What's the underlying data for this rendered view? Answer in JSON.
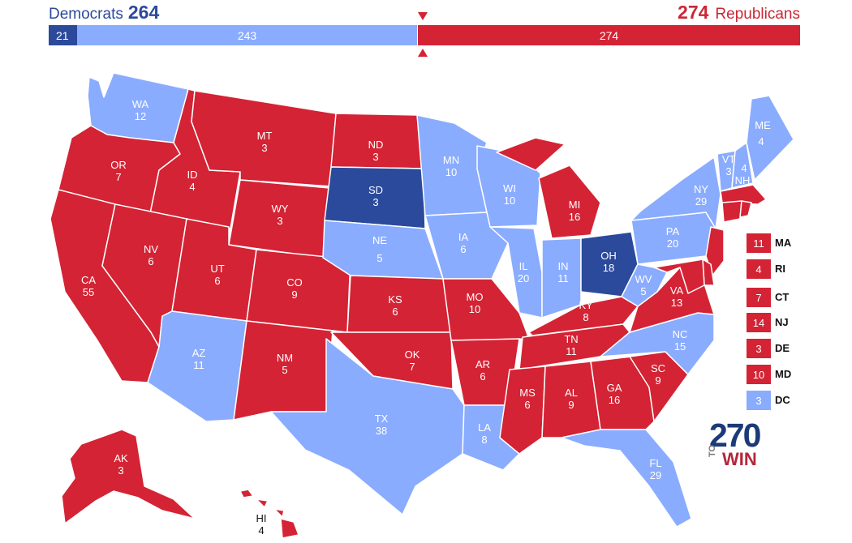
{
  "header": {
    "dem_label": "Democrats",
    "dem_total": "264",
    "rep_label": "Republicans",
    "rep_total": "274",
    "bar_dem_safe": "21",
    "bar_dem_lean": "243",
    "bar_rep": "274"
  },
  "colors": {
    "dem_safe": "#2b4a9b",
    "dem_lean": "#8aacff",
    "rep": "#d42334"
  },
  "states": {
    "WA": {
      "abbr": "WA",
      "ev": "12",
      "party": "dem_lean"
    },
    "OR": {
      "abbr": "OR",
      "ev": "7",
      "party": "rep"
    },
    "CA": {
      "abbr": "CA",
      "ev": "55",
      "party": "rep"
    },
    "ID": {
      "abbr": "ID",
      "ev": "4",
      "party": "rep"
    },
    "NV": {
      "abbr": "NV",
      "ev": "6",
      "party": "rep"
    },
    "MT": {
      "abbr": "MT",
      "ev": "3",
      "party": "rep"
    },
    "WY": {
      "abbr": "WY",
      "ev": "3",
      "party": "rep"
    },
    "UT": {
      "abbr": "UT",
      "ev": "6",
      "party": "rep"
    },
    "AZ": {
      "abbr": "AZ",
      "ev": "11",
      "party": "dem_lean"
    },
    "CO": {
      "abbr": "CO",
      "ev": "9",
      "party": "rep"
    },
    "NM": {
      "abbr": "NM",
      "ev": "5",
      "party": "rep"
    },
    "ND": {
      "abbr": "ND",
      "ev": "3",
      "party": "rep"
    },
    "SD": {
      "abbr": "SD",
      "ev": "3",
      "party": "dem_safe"
    },
    "NE": {
      "abbr": "NE",
      "ev": "5",
      "party": "dem_lean"
    },
    "KS": {
      "abbr": "KS",
      "ev": "6",
      "party": "rep"
    },
    "OK": {
      "abbr": "OK",
      "ev": "7",
      "party": "rep"
    },
    "TX": {
      "abbr": "TX",
      "ev": "38",
      "party": "dem_lean"
    },
    "MN": {
      "abbr": "MN",
      "ev": "10",
      "party": "dem_lean"
    },
    "IA": {
      "abbr": "IA",
      "ev": "6",
      "party": "dem_lean"
    },
    "MO": {
      "abbr": "MO",
      "ev": "10",
      "party": "rep"
    },
    "AR": {
      "abbr": "AR",
      "ev": "6",
      "party": "rep"
    },
    "LA": {
      "abbr": "LA",
      "ev": "8",
      "party": "dem_lean"
    },
    "WI": {
      "abbr": "WI",
      "ev": "10",
      "party": "dem_lean"
    },
    "IL": {
      "abbr": "IL",
      "ev": "20",
      "party": "dem_lean"
    },
    "MI": {
      "abbr": "MI",
      "ev": "16",
      "party": "rep"
    },
    "IN": {
      "abbr": "IN",
      "ev": "11",
      "party": "dem_lean"
    },
    "OH": {
      "abbr": "OH",
      "ev": "18",
      "party": "dem_safe"
    },
    "KY": {
      "abbr": "KY",
      "ev": "8",
      "party": "rep"
    },
    "TN": {
      "abbr": "TN",
      "ev": "11",
      "party": "rep"
    },
    "MS": {
      "abbr": "MS",
      "ev": "6",
      "party": "rep"
    },
    "AL": {
      "abbr": "AL",
      "ev": "9",
      "party": "rep"
    },
    "GA": {
      "abbr": "GA",
      "ev": "16",
      "party": "rep"
    },
    "FL": {
      "abbr": "FL",
      "ev": "29",
      "party": "dem_lean"
    },
    "SC": {
      "abbr": "SC",
      "ev": "9",
      "party": "rep"
    },
    "NC": {
      "abbr": "NC",
      "ev": "15",
      "party": "dem_lean"
    },
    "VA": {
      "abbr": "VA",
      "ev": "13",
      "party": "rep"
    },
    "WV": {
      "abbr": "WV",
      "ev": "5",
      "party": "dem_lean"
    },
    "PA": {
      "abbr": "PA",
      "ev": "20",
      "party": "dem_lean"
    },
    "NY": {
      "abbr": "NY",
      "ev": "29",
      "party": "dem_lean"
    },
    "VT": {
      "abbr": "VT",
      "ev": "3",
      "party": "dem_lean"
    },
    "NH": {
      "abbr": "NH",
      "ev": "4",
      "party": "dem_lean"
    },
    "ME": {
      "abbr": "ME",
      "ev": "4",
      "party": "dem_lean"
    },
    "AK": {
      "abbr": "AK",
      "ev": "3",
      "party": "rep"
    },
    "HI": {
      "abbr": "HI",
      "ev": "4",
      "party": "rep"
    },
    "MA": {
      "party": "rep"
    },
    "CT": {
      "party": "rep"
    },
    "RI": {
      "party": "rep"
    },
    "NJ": {
      "party": "rep"
    },
    "DE": {
      "party": "rep"
    },
    "MD": {
      "party": "rep"
    }
  },
  "legend": [
    {
      "abbr": "MA",
      "ev": "11",
      "party": "rep"
    },
    {
      "abbr": "RI",
      "ev": "4",
      "party": "rep"
    },
    {
      "abbr": "CT",
      "ev": "7",
      "party": "rep"
    },
    {
      "abbr": "NJ",
      "ev": "14",
      "party": "rep"
    },
    {
      "abbr": "DE",
      "ev": "3",
      "party": "rep"
    },
    {
      "abbr": "MD",
      "ev": "10",
      "party": "rep"
    },
    {
      "abbr": "DC",
      "ev": "3",
      "party": "dem_lean"
    }
  ],
  "logo": {
    "number": "270",
    "to": "TO",
    "win": "WIN"
  }
}
